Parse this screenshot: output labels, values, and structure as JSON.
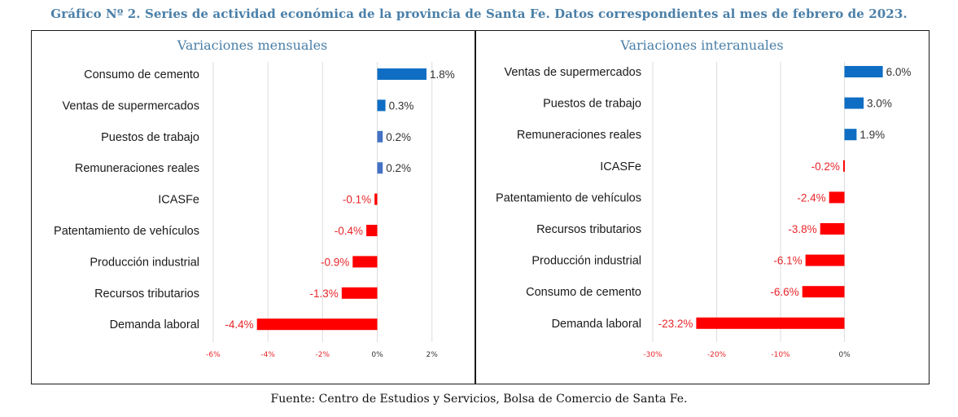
{
  "figure": {
    "title": "Gráfico Nº 2. Series de actividad económica de la provincia de Santa Fe. Datos correspondientes al mes de febrero de 2023.",
    "source": "Fuente: Centro de Estudios y Servicios, Bolsa de Comercio de Santa Fe."
  },
  "colors": {
    "positive": "#0f6ec4",
    "positive_alt": "#4472c4",
    "negative": "#ff0000",
    "title": "#4a7fa8",
    "grid": "#dcdcdc",
    "negative_label": "#e8262a",
    "positive_label": "#333333"
  },
  "chart_data": [
    {
      "type": "bar",
      "orientation": "horizontal",
      "title": "Variaciones mensuales",
      "categories": [
        "Consumo de cemento",
        "Ventas de supermercados",
        "Puestos de trabajo",
        "Remuneraciones reales",
        "ICASFe",
        "Patentamiento de vehículos",
        "Producción industrial",
        "Recursos tributarios",
        "Demanda laboral"
      ],
      "values": [
        1.8,
        0.3,
        0.2,
        0.2,
        -0.1,
        -0.4,
        -0.9,
        -1.3,
        -4.4
      ],
      "data_labels": [
        "1.8%",
        "0.3%",
        "0.2%",
        "0.2%",
        "-0.1%",
        "-0.4%",
        "-0.9%",
        "-1.3%",
        "-4.4%"
      ],
      "unit": "%",
      "xlim": [
        -6,
        2
      ],
      "xticks": [
        -6,
        -4,
        -2,
        0,
        2
      ],
      "xtick_labels": [
        "-6%",
        "-4%",
        "-2%",
        "0%",
        "2%"
      ],
      "grid": true,
      "legend": "none"
    },
    {
      "type": "bar",
      "orientation": "horizontal",
      "title": "Variaciones interanuales",
      "categories": [
        "Ventas de supermercados",
        "Puestos de trabajo",
        "Remuneraciones reales",
        "ICASFe",
        "Patentamiento de vehículos",
        "Recursos tributarios",
        "Producción industrial",
        "Consumo de cemento",
        "Demanda laboral"
      ],
      "values": [
        6.0,
        3.0,
        1.9,
        -0.2,
        -2.4,
        -3.8,
        -6.1,
        -6.6,
        -23.2
      ],
      "data_labels": [
        "6.0%",
        "3.0%",
        "1.9%",
        "-0.2%",
        "-2.4%",
        "-3.8%",
        "-6.1%",
        "-6.6%",
        "-23.2%"
      ],
      "unit": "%",
      "xlim": [
        -30,
        10
      ],
      "xticks": [
        -30,
        -20,
        -10,
        0
      ],
      "xtick_labels": [
        "-30%",
        "-20%",
        "-10%",
        "0%"
      ],
      "grid": true,
      "legend": "none"
    }
  ]
}
